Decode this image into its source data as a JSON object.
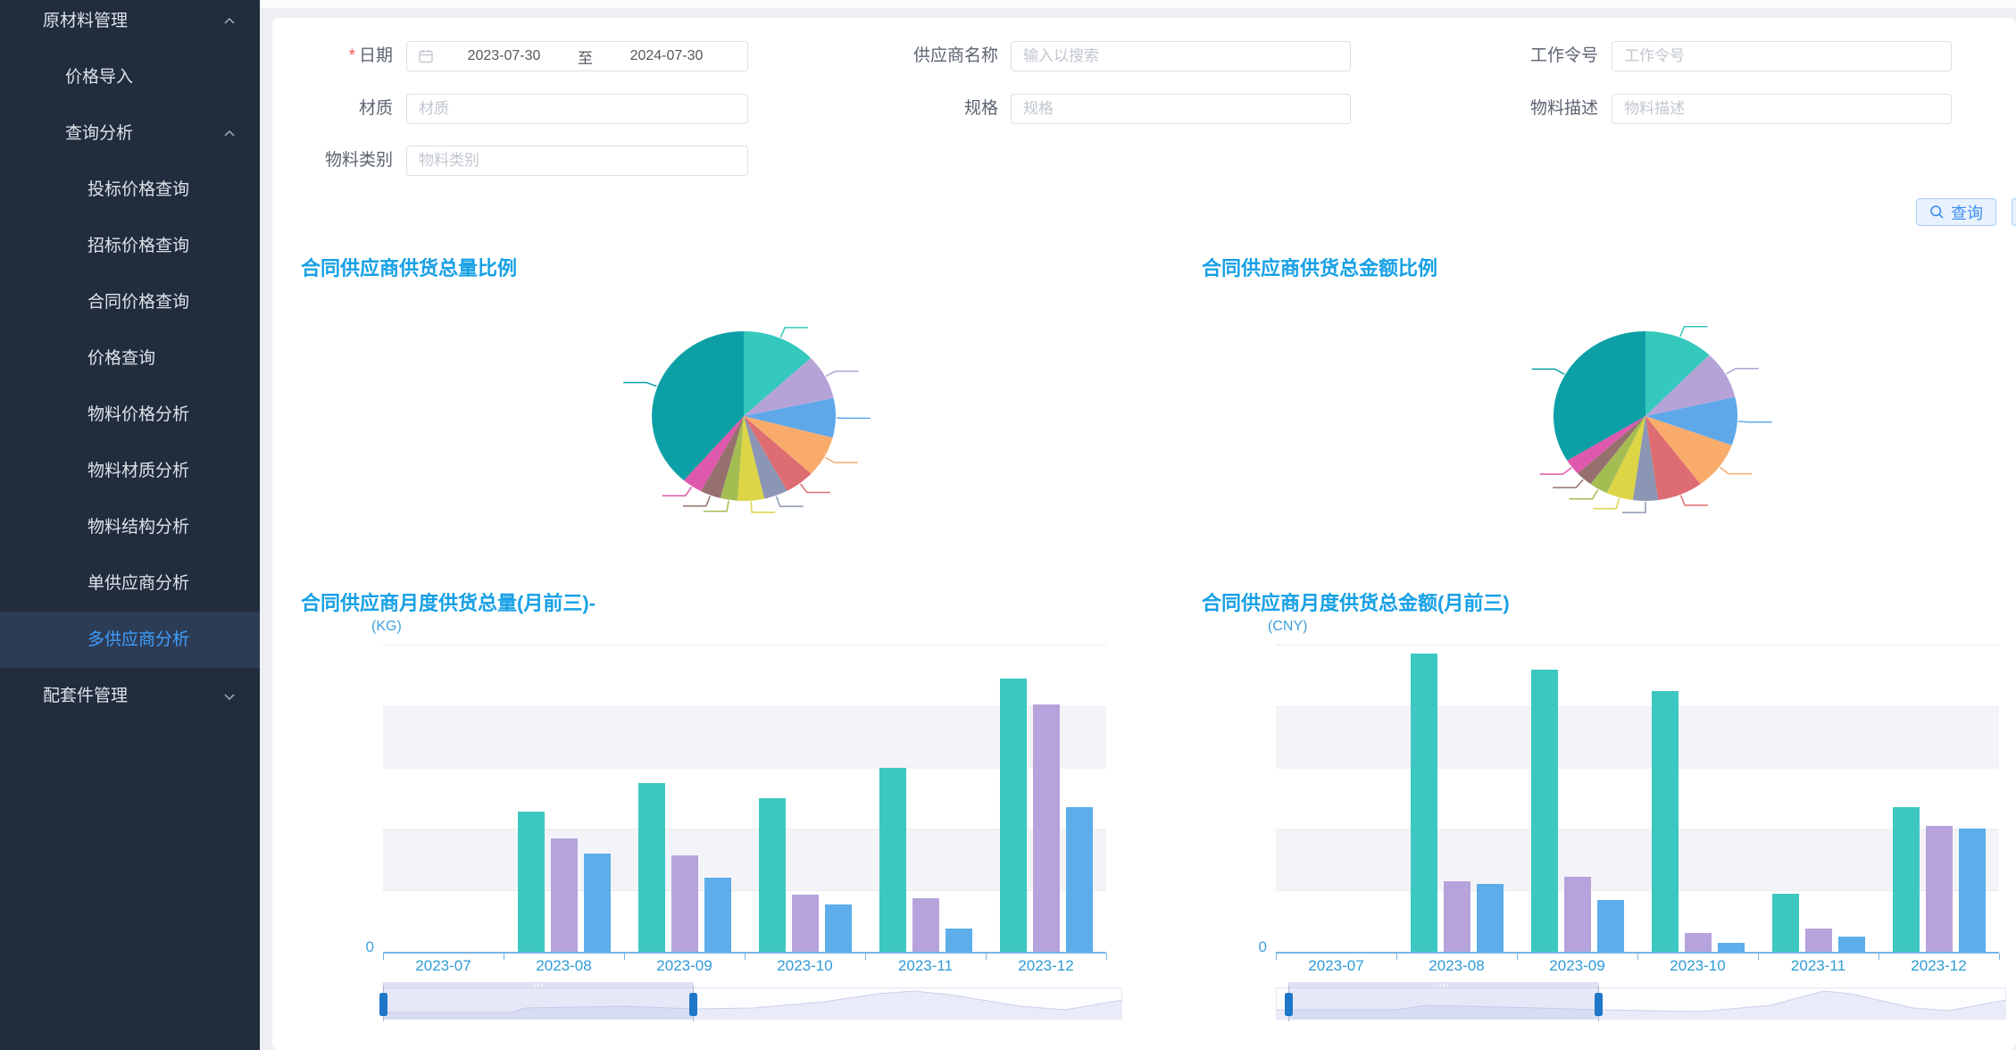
{
  "sidebar": {
    "items": [
      {
        "label": "原材料管理",
        "level": 1,
        "chevron": "up",
        "selected": false
      },
      {
        "label": "价格导入",
        "level": 2,
        "chevron": null,
        "selected": false
      },
      {
        "label": "查询分析",
        "level": 2,
        "chevron": "up",
        "selected": false
      },
      {
        "label": "投标价格查询",
        "level": 3,
        "chevron": null,
        "selected": false
      },
      {
        "label": "招标价格查询",
        "level": 3,
        "chevron": null,
        "selected": false
      },
      {
        "label": "合同价格查询",
        "level": 3,
        "chevron": null,
        "selected": false
      },
      {
        "label": "价格查询",
        "level": 3,
        "chevron": null,
        "selected": false
      },
      {
        "label": "物料价格分析",
        "level": 3,
        "chevron": null,
        "selected": false
      },
      {
        "label": "物料材质分析",
        "level": 3,
        "chevron": null,
        "selected": false
      },
      {
        "label": "物料结构分析",
        "level": 3,
        "chevron": null,
        "selected": false
      },
      {
        "label": "单供应商分析",
        "level": 3,
        "chevron": null,
        "selected": false
      },
      {
        "label": "多供应商分析",
        "level": 3,
        "chevron": null,
        "selected": true
      },
      {
        "label": "配套件管理",
        "level": 1,
        "chevron": "down",
        "selected": false
      }
    ],
    "selected_color": "#3f9eff"
  },
  "form": {
    "date": {
      "label": "日期",
      "required": "*",
      "start": "2023-07-30",
      "separator": "至",
      "end": "2024-07-30"
    },
    "supplier": {
      "label": "供应商名称",
      "placeholder": "输入以搜索"
    },
    "work_order": {
      "label": "工作令号",
      "placeholder": "工作令号"
    },
    "material": {
      "label": "材质",
      "placeholder": "材质"
    },
    "spec": {
      "label": "规格",
      "placeholder": "规格"
    },
    "material_desc": {
      "label": "物料描述",
      "placeholder": "物料描述"
    },
    "material_category": {
      "label": "物料类别",
      "placeholder": "物料类别"
    },
    "query_button": {
      "label": "查询"
    }
  },
  "chart_data": [
    {
      "type": "pie",
      "title": "合同供应商供货总量比例",
      "labels_visible": false,
      "slices": [
        {
          "value": 13.0,
          "color": "#35c8bd"
        },
        {
          "value": 8.6,
          "color": "#b5a3d8"
        },
        {
          "value": 7.5,
          "color": "#5ea8ea"
        },
        {
          "value": 7.8,
          "color": "#f8ab6b"
        },
        {
          "value": 5.3,
          "color": "#dd6d72"
        },
        {
          "value": 4.2,
          "color": "#8b96b4"
        },
        {
          "value": 4.7,
          "color": "#ddd545"
        },
        {
          "value": 3.0,
          "color": "#a3bd53"
        },
        {
          "value": 3.6,
          "color": "#95706d"
        },
        {
          "value": 3.6,
          "color": "#de58ad"
        },
        {
          "value": 38.7,
          "color": "#0d9fa6"
        }
      ]
    },
    {
      "type": "pie",
      "title": "合同供应商供货总金额比例",
      "labels_visible": false,
      "slices": [
        {
          "value": 12.2,
          "color": "#35c8bd"
        },
        {
          "value": 9.2,
          "color": "#b5a3d8"
        },
        {
          "value": 9.2,
          "color": "#5ea8ea"
        },
        {
          "value": 9.2,
          "color": "#f8ab6b"
        },
        {
          "value": 8.0,
          "color": "#dd6d72"
        },
        {
          "value": 4.4,
          "color": "#8b96b4"
        },
        {
          "value": 4.7,
          "color": "#ddd545"
        },
        {
          "value": 3.3,
          "color": "#a3bd53"
        },
        {
          "value": 3.0,
          "color": "#95706d"
        },
        {
          "value": 3.0,
          "color": "#de58ad"
        },
        {
          "value": 33.8,
          "color": "#0d9fa6"
        }
      ]
    },
    {
      "type": "bar",
      "title": "合同供应商月度供货总量(月前三)-",
      "unit": "(KG)",
      "ylabel_zero": "0",
      "ylim": [
        0,
        100
      ],
      "note": "values are percent of plot height; y axis shows only 0",
      "categories": [
        "2023-07",
        "2023-08",
        "2023-09",
        "2023-10",
        "2023-11",
        "2023-12"
      ],
      "series": [
        {
          "name": "series-1",
          "color": "#3cc8c1",
          "values": [
            0,
            45.5,
            55,
            50,
            60,
            89
          ]
        },
        {
          "name": "series-2",
          "color": "#b6a3dc",
          "values": [
            0,
            37,
            31.5,
            18.5,
            17.5,
            80.5
          ]
        },
        {
          "name": "series-3",
          "color": "#5cade9",
          "values": [
            0,
            32,
            24,
            15.5,
            7.5,
            47
          ]
        }
      ]
    },
    {
      "type": "bar",
      "title": "合同供应商月度供货总金额(月前三)",
      "unit": "(CNY)",
      "ylabel_zero": "0",
      "ylim": [
        0,
        100
      ],
      "note": "values are percent of plot height; y axis shows only 0",
      "categories": [
        "2023-07",
        "2023-08",
        "2023-09",
        "2023-10",
        "2023-11",
        "2023-12"
      ],
      "series": [
        {
          "name": "series-1",
          "color": "#3cc8c1",
          "values": [
            0,
            97,
            92,
            85,
            19,
            47
          ]
        },
        {
          "name": "series-2",
          "color": "#b6a3dc",
          "values": [
            0,
            23,
            24.5,
            6,
            7.5,
            41
          ]
        },
        {
          "name": "series-3",
          "color": "#5cade9",
          "values": [
            0,
            22,
            17,
            3,
            5,
            40
          ]
        }
      ]
    }
  ],
  "colors": {
    "sidebar_bg": "#212c3d",
    "sidebar_selected_bg": "#2c3c55",
    "accent_blue": "#3d8df0",
    "title_blue": "#17a0e5",
    "axis_blue": "#2f9bd8",
    "bar_teal": "#3cc8c1",
    "bar_purple": "#b6a3dc",
    "bar_blue": "#5cade9"
  }
}
